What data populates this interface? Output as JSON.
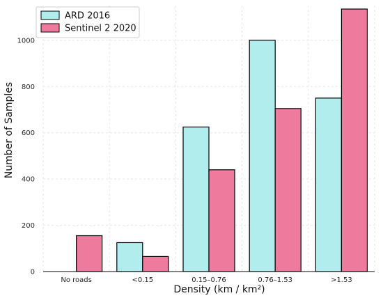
{
  "chart_data": {
    "type": "bar",
    "categories": [
      "No roads",
      "<0.15",
      "0.15–0.76",
      "0.76–1.53",
      ">1.53"
    ],
    "series": [
      {
        "name": "ARD 2016",
        "values": [
          0,
          125,
          625,
          1000,
          750
        ],
        "color": "#b2eded"
      },
      {
        "name": "Sentinel 2 2020",
        "values": [
          155,
          65,
          440,
          705,
          1135
        ],
        "color": "#ee7b9e"
      }
    ],
    "xlabel": "Density (km / km²)",
    "ylabel": "Number of Samples",
    "ylim": [
      0,
      1150
    ],
    "yticks": [
      0,
      200,
      400,
      600,
      800,
      1000
    ],
    "grid": true,
    "legend_position": "top-left"
  }
}
